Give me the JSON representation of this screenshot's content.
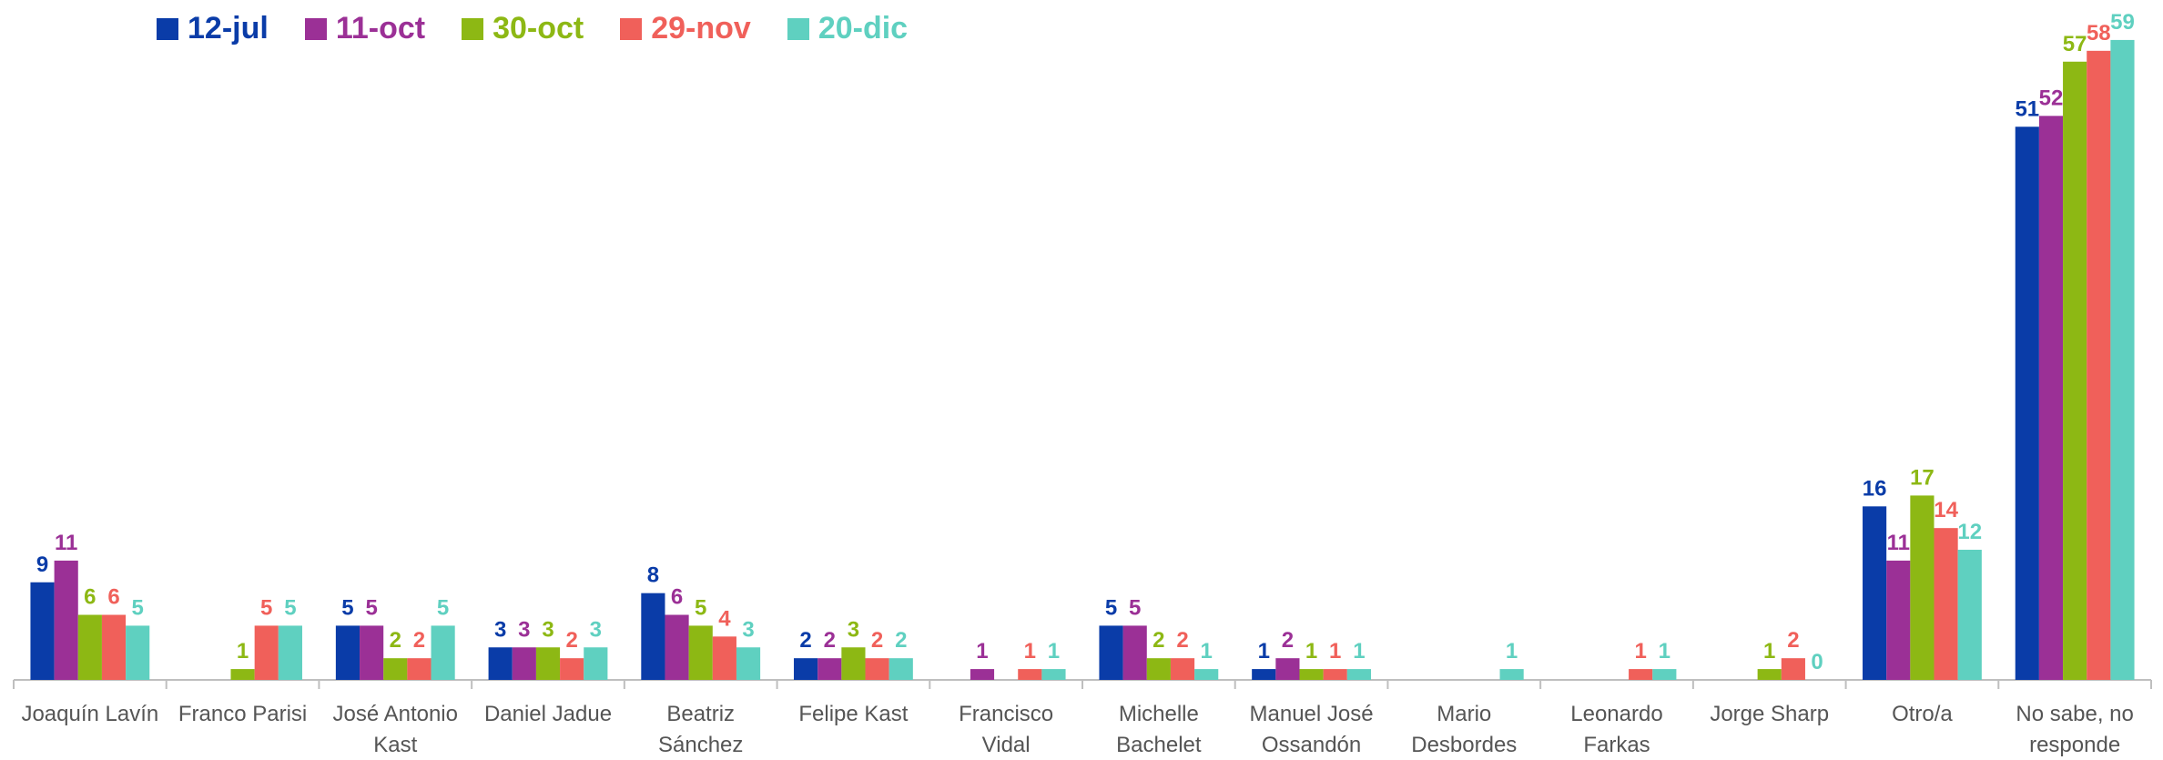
{
  "chart_data": {
    "type": "bar",
    "categories": [
      "Joaquín Lavín",
      "Franco Parisi",
      "José Antonio Kast",
      "Daniel Jadue",
      "Beatriz Sánchez",
      "Felipe Kast",
      "Francisco Vidal",
      "Michelle Bachelet",
      "Manuel José Ossandón",
      "Mario Desbordes",
      "Leonardo Farkas",
      "Jorge Sharp",
      "Otro/a",
      "No sabe, no responde"
    ],
    "series": [
      {
        "name": "12-jul",
        "color": "#0a3ca8",
        "values": [
          9,
          null,
          5,
          3,
          8,
          2,
          null,
          5,
          1,
          null,
          null,
          null,
          16,
          51
        ]
      },
      {
        "name": "11-oct",
        "color": "#9b3096",
        "values": [
          11,
          null,
          5,
          3,
          6,
          2,
          1,
          5,
          2,
          null,
          null,
          null,
          11,
          52
        ]
      },
      {
        "name": "30-oct",
        "color": "#8db814",
        "values": [
          6,
          1,
          2,
          3,
          5,
          3,
          null,
          2,
          1,
          null,
          null,
          1,
          17,
          57
        ]
      },
      {
        "name": "29-nov",
        "color": "#f0605a",
        "values": [
          6,
          5,
          2,
          2,
          4,
          2,
          1,
          2,
          1,
          null,
          1,
          2,
          14,
          58
        ]
      },
      {
        "name": "20-dic",
        "color": "#5fd0c0",
        "values": [
          5,
          5,
          5,
          3,
          3,
          2,
          1,
          1,
          1,
          1,
          1,
          0,
          12,
          59
        ]
      }
    ],
    "ylim": [
      0,
      60
    ],
    "legend": "top-left"
  }
}
